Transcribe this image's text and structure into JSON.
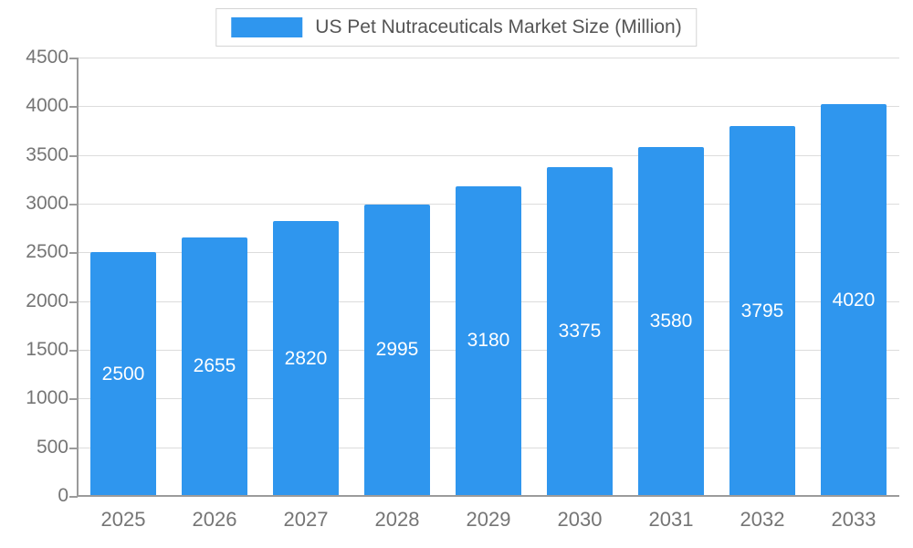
{
  "chart_data": {
    "type": "bar",
    "title": "US Pet Nutraceuticals Market Size (Million)",
    "series_name": "US Pet Nutraceuticals Market Size (Million)",
    "categories": [
      "2025",
      "2026",
      "2027",
      "2028",
      "2029",
      "2030",
      "2031",
      "2032",
      "2033"
    ],
    "values": [
      2500,
      2655,
      2820,
      2995,
      3180,
      3375,
      3580,
      3795,
      4020
    ],
    "xlabel": "",
    "ylabel": "",
    "ylim": [
      0,
      4500
    ],
    "ytick_step": 500,
    "ytick_labels": [
      "0",
      "500",
      "1000",
      "1500",
      "2000",
      "2500",
      "3000",
      "3500",
      "4000",
      "4500"
    ],
    "grid": true,
    "legend_position": "top",
    "colors": {
      "bar": "#2F96EE",
      "value_label": "#ffffff",
      "axis": "#9b9b9b",
      "gridline": "#dcdcdc",
      "tick_label": "#757575",
      "title": "#555555"
    }
  }
}
